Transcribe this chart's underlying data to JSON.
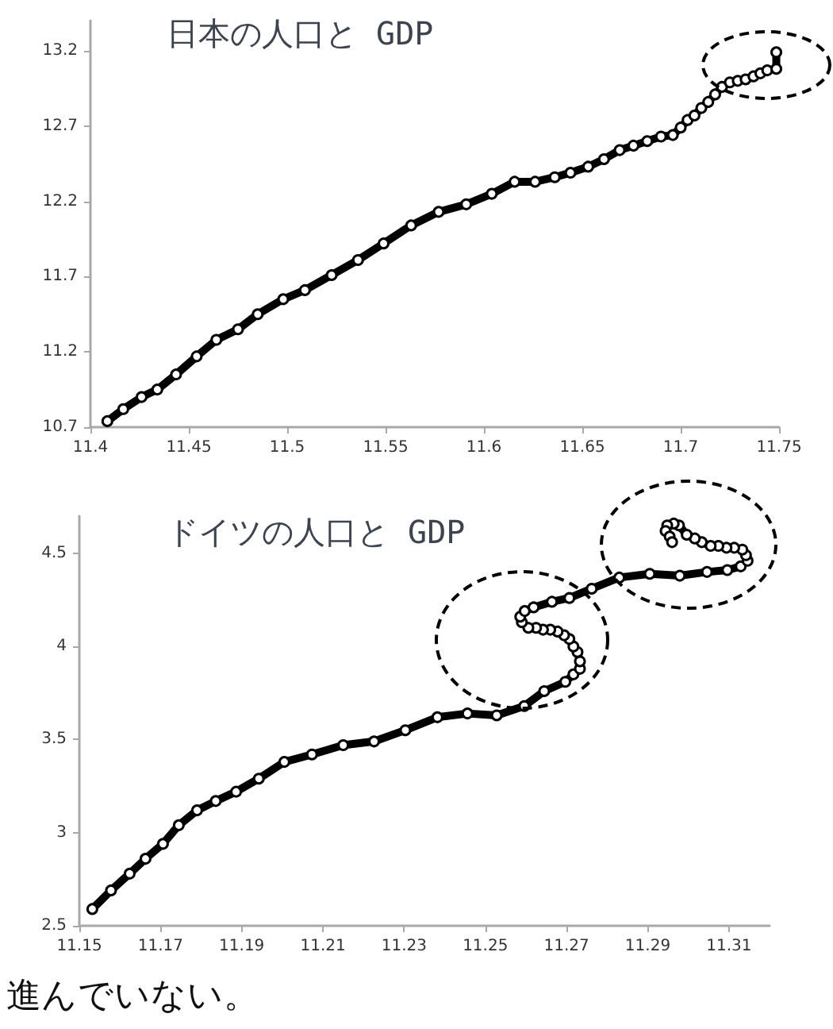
{
  "chart_data": [
    {
      "type": "line",
      "title": "日本の人口と GDP",
      "xlim": [
        11.4,
        11.75
      ],
      "ylim": [
        10.7,
        13.4
      ],
      "xticks": [
        11.4,
        11.45,
        11.5,
        11.55,
        11.6,
        11.65,
        11.7,
        11.75
      ],
      "yticks": [
        10.7,
        11.2,
        11.7,
        12.2,
        12.7,
        13.2
      ],
      "grid": false,
      "marker": "circle",
      "line_style": "solid",
      "series": [
        {
          "color": "#000000",
          "x": [
            11.4086,
            11.4167,
            11.426,
            11.434,
            11.4435,
            11.454,
            11.464,
            11.475,
            11.485,
            11.498,
            11.509,
            11.5226,
            11.536,
            11.549,
            11.563,
            11.577,
            11.591,
            11.604,
            11.6156,
            11.626,
            11.636,
            11.644,
            11.653,
            11.661,
            11.669,
            11.676,
            11.683,
            11.69,
            11.696,
            11.7,
            11.7035,
            11.707,
            11.7105,
            11.714,
            11.7175,
            11.721,
            11.725,
            11.729,
            11.733,
            11.737,
            11.7405,
            11.744,
            11.7486,
            11.7486
          ],
          "values": [
            10.74,
            10.82,
            10.9,
            10.95,
            11.05,
            11.17,
            11.28,
            11.35,
            11.45,
            11.55,
            11.61,
            11.71,
            11.81,
            11.92,
            12.04,
            12.13,
            12.18,
            12.25,
            12.33,
            12.33,
            12.36,
            12.39,
            12.43,
            12.48,
            12.54,
            12.57,
            12.6,
            12.63,
            12.64,
            12.69,
            12.74,
            12.77,
            12.82,
            12.86,
            12.91,
            12.96,
            12.99,
            13.0,
            13.01,
            13.03,
            13.05,
            13.07,
            13.08,
            13.19
          ]
        }
      ]
    },
    {
      "type": "line",
      "title": "ドイツの人口と GDP",
      "xlim": [
        11.15,
        11.32
      ],
      "ylim": [
        2.5,
        4.7
      ],
      "xticks": [
        11.15,
        11.17,
        11.19,
        11.21,
        11.23,
        11.25,
        11.27,
        11.29,
        11.31
      ],
      "yticks": [
        2.5,
        3,
        3.5,
        4,
        4.5
      ],
      "grid": false,
      "marker": "circle",
      "line_style": "solid",
      "annotations": [
        "進んでいない。"
      ],
      "series": [
        {
          "color": "#000000",
          "x": [
            11.1532,
            11.1578,
            11.1624,
            11.1663,
            11.1706,
            11.1745,
            11.179,
            11.1836,
            11.1886,
            11.1942,
            11.2005,
            11.2073,
            11.215,
            11.2226,
            11.2303,
            11.2382,
            11.2456,
            11.2528,
            11.2596,
            11.2645,
            11.2697,
            11.2717,
            11.2733,
            11.2733,
            11.2727,
            11.2717,
            11.2707,
            11.2694,
            11.2678,
            11.266,
            11.2642,
            11.2625,
            11.2606,
            11.259,
            11.2586,
            11.2597,
            11.2619,
            11.2664,
            11.2707,
            11.2762,
            11.283,
            11.2905,
            11.2979,
            11.3046,
            11.3096,
            11.3129,
            11.3146,
            11.3142,
            11.3133,
            11.3113,
            11.3094,
            11.3074,
            11.3055,
            11.3033,
            11.3016,
            11.2996,
            11.2977,
            11.2964,
            11.2948,
            11.2944,
            11.2954,
            11.296
          ],
          "values": [
            2.59,
            2.69,
            2.78,
            2.86,
            2.94,
            3.04,
            3.12,
            3.17,
            3.22,
            3.29,
            3.38,
            3.42,
            3.47,
            3.49,
            3.55,
            3.62,
            3.64,
            3.63,
            3.68,
            3.76,
            3.81,
            3.85,
            3.88,
            3.92,
            3.97,
            4.0,
            4.04,
            4.06,
            4.08,
            4.09,
            4.09,
            4.1,
            4.1,
            4.13,
            4.16,
            4.19,
            4.21,
            4.24,
            4.26,
            4.31,
            4.37,
            4.39,
            4.38,
            4.4,
            4.41,
            4.43,
            4.46,
            4.49,
            4.52,
            4.53,
            4.53,
            4.54,
            4.54,
            4.56,
            4.58,
            4.6,
            4.65,
            4.66,
            4.65,
            4.62,
            4.59,
            4.56
          ]
        }
      ]
    }
  ]
}
